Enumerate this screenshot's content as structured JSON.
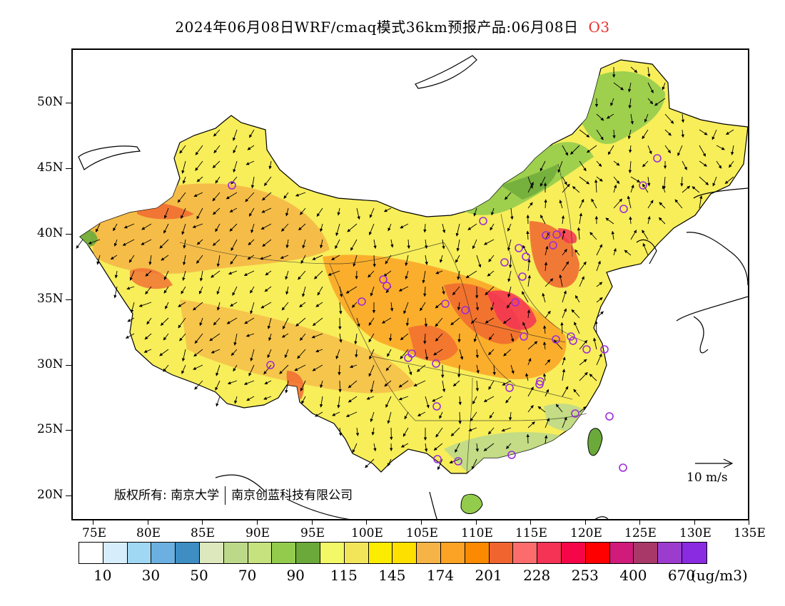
{
  "title": {
    "main": "2024年06月08日WRF/cmaq模式36km预报产品:06月08日",
    "species": "O3"
  },
  "latitude_labels": [
    "50N",
    "45N",
    "40N",
    "35N",
    "30N",
    "25N",
    "20N"
  ],
  "longitude_labels": [
    "75E",
    "80E",
    "85E",
    "90E",
    "95E",
    "100E",
    "105E",
    "110E",
    "115E",
    "120E",
    "125E",
    "130E",
    "135E"
  ],
  "colorbar": {
    "colors": [
      "#ffffff",
      "#d6eefb",
      "#a0d7f3",
      "#6bb0e0",
      "#3e8ec4",
      "#dde9bd",
      "#bcd98a",
      "#c6e27e",
      "#93cc4d",
      "#6ba93a",
      "#f3f867",
      "#f2e55a",
      "#fbec00",
      "#fde000",
      "#f5b445",
      "#fca224",
      "#fb8a00",
      "#f06430",
      "#fc6c6c",
      "#f53355",
      "#f50648",
      "#ff0000",
      "#d01b7a",
      "#a73868",
      "#9c3ccf",
      "#8a2be2"
    ],
    "labels": [
      "10",
      "30",
      "50",
      "70",
      "90",
      "115",
      "145",
      "174",
      "201",
      "228",
      "253",
      "400",
      "670"
    ],
    "unit": "(ug/m3)"
  },
  "copyright": {
    "prefix": "版权所有: 南京大学",
    "suffix": "南京创蓝科技有限公司"
  },
  "wind_reference": {
    "label": "10 m/s"
  },
  "map": {
    "extent": {
      "lon": [
        73,
        135
      ],
      "lat": [
        18,
        54
      ]
    },
    "land_fill": "#f7ee5a",
    "ocean_fill": "#ffffff"
  }
}
